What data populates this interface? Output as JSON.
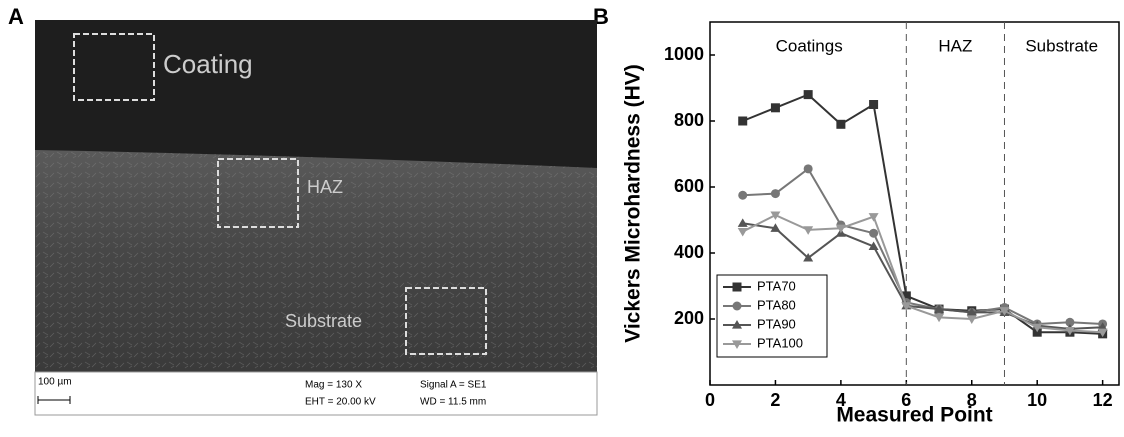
{
  "panels": {
    "a_label": "A",
    "b_label": "B"
  },
  "micrograph": {
    "regions": [
      "Coating",
      "HAZ",
      "Substrate"
    ],
    "scale_bar": "100 µm",
    "info": [
      "Mag =    130 X",
      "Signal A = SE1",
      "EHT = 20.00 kV",
      "WD = 11.5 mm"
    ]
  },
  "chart_data": {
    "type": "line",
    "x_label": "Measured Point",
    "y_label": "Vickers Microhardness (HV)",
    "x": [
      1,
      2,
      3,
      4,
      5,
      6,
      7,
      8,
      9,
      10,
      11,
      12
    ],
    "series": [
      {
        "name": "PTA70",
        "color": "#333333",
        "marker": "square",
        "values": [
          800,
          840,
          880,
          790,
          850,
          270,
          230,
          225,
          230,
          160,
          160,
          155
        ]
      },
      {
        "name": "PTA80",
        "color": "#777777",
        "marker": "circle",
        "values": [
          575,
          580,
          655,
          485,
          460,
          250,
          230,
          220,
          235,
          185,
          190,
          185
        ]
      },
      {
        "name": "PTA90",
        "color": "#555555",
        "marker": "triangle",
        "values": [
          490,
          475,
          385,
          460,
          420,
          240,
          230,
          220,
          220,
          180,
          170,
          175
        ]
      },
      {
        "name": "PTA100",
        "color": "#999999",
        "marker": "triangle-down",
        "values": [
          465,
          515,
          470,
          475,
          510,
          240,
          205,
          200,
          225,
          175,
          165,
          160
        ]
      }
    ],
    "xlim": [
      0,
      12.5
    ],
    "xticks": [
      0,
      2,
      4,
      6,
      8,
      10,
      12
    ],
    "ylim": [
      0,
      1100
    ],
    "yticks": [
      200,
      400,
      600,
      800,
      1000
    ],
    "vlines": [
      6,
      9
    ],
    "annotations": [
      "Coatings",
      "HAZ",
      "Substrate"
    ],
    "legend": "lower left"
  }
}
